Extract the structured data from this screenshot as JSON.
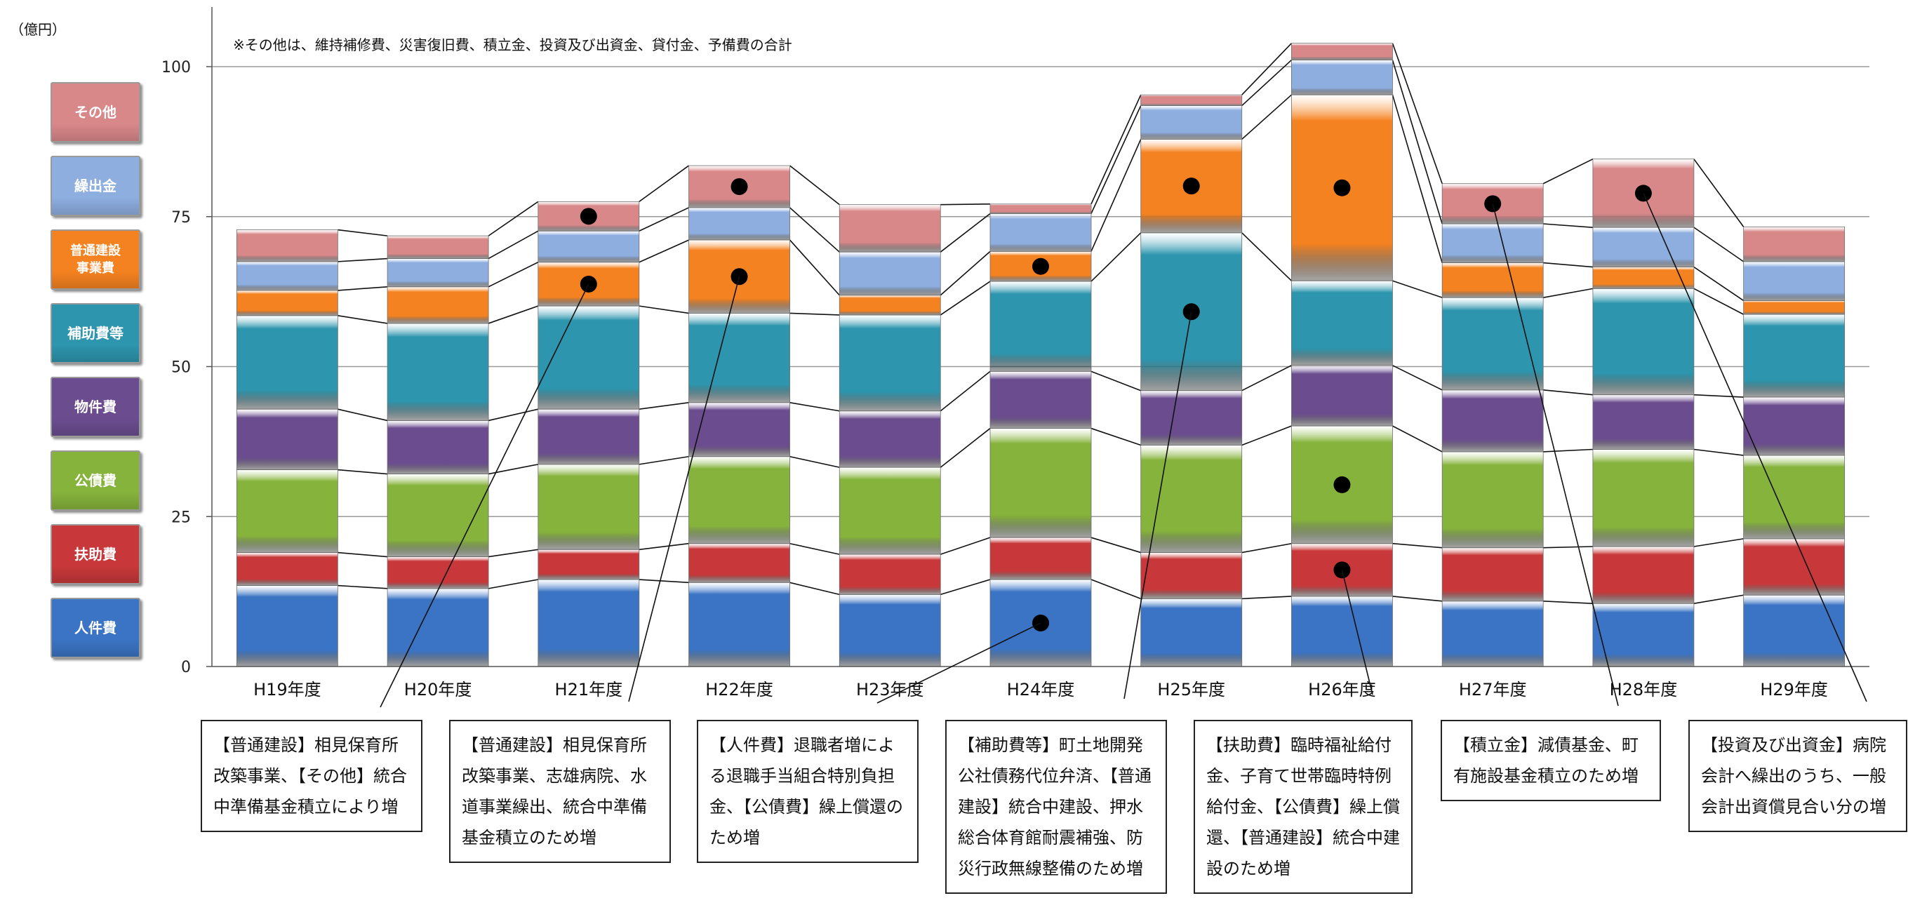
{
  "unit_label": "（億円）",
  "note": "※その他は、維持補修費、災害復旧費、積立金、投資及び出資金、貸付金、予備費の合計",
  "legend": [
    {
      "label": "その他",
      "color": "#d9888a"
    },
    {
      "label": "繰出金",
      "color": "#8eaee0"
    },
    {
      "label": "普通建設\n事業費",
      "color": "#f58220"
    },
    {
      "label": "補助費等",
      "color": "#2d95ad"
    },
    {
      "label": "物件費",
      "color": "#6b4d8f"
    },
    {
      "label": "公債費",
      "color": "#86b33c"
    },
    {
      "label": "扶助費",
      "color": "#c8383a"
    },
    {
      "label": "人件費",
      "color": "#3b74c4"
    }
  ],
  "callouts": [
    {
      "text": "【普通建設】相見保育所改築事業、【その他】統合中準備基金積立により増"
    },
    {
      "text": "【普通建設】相見保育所改築事業、志雄病院、水道事業繰出、統合中準備基金積立のため増"
    },
    {
      "text": "【人件費】退職者増による退職手当組合特別負担金、【公債費】繰上償還のため増"
    },
    {
      "text": "【補助費等】町土地開発公社債務代位弁済、【普通建設】統合中建設、押水総合体育館耐震補強、防災行政無線整備のため増"
    },
    {
      "text": "【扶助費】臨時福祉給付金、子育て世帯臨時特例給付金、【公債費】繰上償還、【普通建設】統合中建設のため増"
    },
    {
      "text": "【積立金】減債基金、町有施設基金積立のため増"
    },
    {
      "text": "【投資及び出資金】病院会計へ繰出のうち、一般会計出資償見合い分の増"
    }
  ],
  "chart_data": {
    "type": "bar",
    "stacked": true,
    "categories": [
      "H19年度",
      "H20年度",
      "H21年度",
      "H22年度",
      "H23年度",
      "H24年度",
      "H25年度",
      "H26年度",
      "H27年度",
      "H28年度",
      "H29年度"
    ],
    "ylim": [
      0,
      110
    ],
    "yticks": [
      0,
      25,
      50,
      75,
      100
    ],
    "grid": true,
    "series": [
      {
        "name": "人件費",
        "color": "#3b74c4",
        "values": [
          13.5,
          13,
          14.5,
          14,
          12,
          14.5,
          11.3,
          11.7,
          10.9,
          10.5,
          11.9
        ]
      },
      {
        "name": "扶助費",
        "color": "#c8383a",
        "values": [
          5.5,
          5.3,
          5.0,
          6.5,
          6.7,
          7.0,
          7.7,
          8.8,
          8.9,
          9.5,
          9.4
        ]
      },
      {
        "name": "公債費",
        "color": "#86b33c",
        "values": [
          13.8,
          13.8,
          14.2,
          14.5,
          14.5,
          18.2,
          17.9,
          19.6,
          16.0,
          16.2,
          13.9
        ]
      },
      {
        "name": "物件費",
        "color": "#6b4d8f",
        "values": [
          10.1,
          8.9,
          9.2,
          9.0,
          9.4,
          9.5,
          9.1,
          10.1,
          10.3,
          9.1,
          9.7
        ]
      },
      {
        "name": "補助費等",
        "color": "#2d95ad",
        "values": [
          15.6,
          16.2,
          17.2,
          14.9,
          16.0,
          15.0,
          26.3,
          14.1,
          15.4,
          17.7,
          13.8
        ]
      },
      {
        "name": "普通建設事業費",
        "color": "#f58220",
        "values": [
          4.2,
          6.1,
          7.3,
          12.2,
          3.3,
          5.0,
          15.6,
          31.0,
          5.8,
          3.6,
          2.3
        ]
      },
      {
        "name": "繰出金",
        "color": "#8eaee0",
        "values": [
          4.8,
          4.7,
          5.2,
          5.4,
          7.2,
          6.3,
          5.6,
          5.8,
          6.5,
          6.6,
          6.5
        ]
      },
      {
        "name": "その他",
        "color": "#d9888a",
        "values": [
          5.3,
          3.8,
          4.9,
          7.0,
          7.9,
          1.6,
          1.8,
          2.8,
          6.7,
          11.4,
          5.8
        ]
      }
    ]
  }
}
